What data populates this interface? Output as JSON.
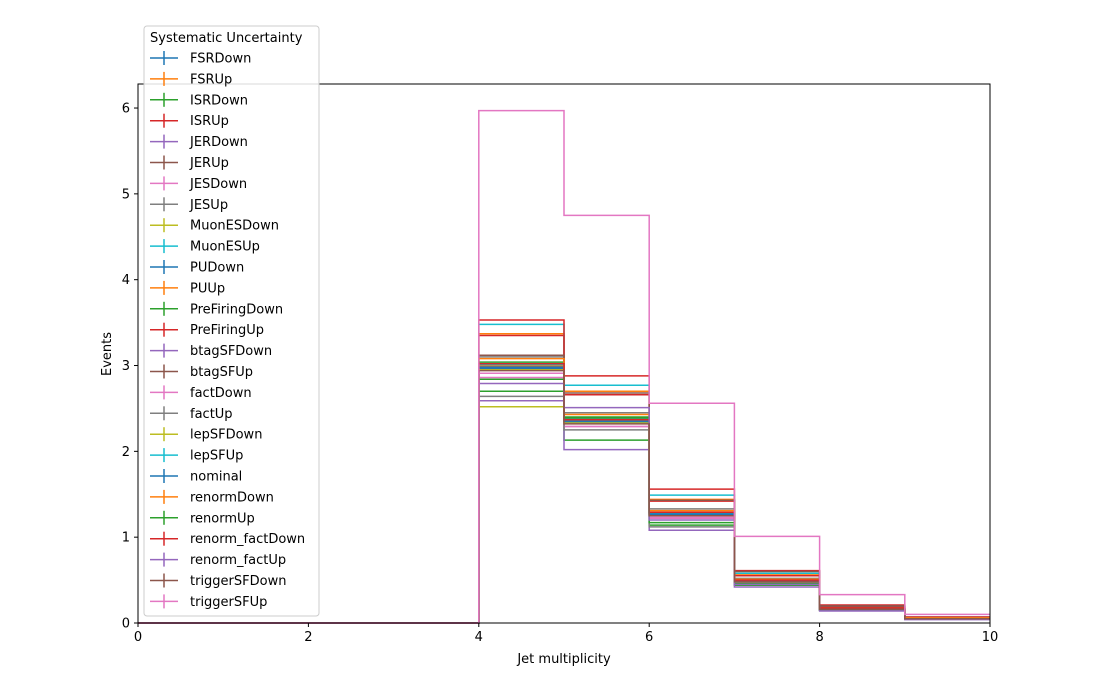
{
  "chart_data": {
    "type": "line",
    "drawstyle": "step",
    "title": "",
    "xlabel": "Jet multiplicity",
    "ylabel": "Events",
    "xlim": [
      0,
      10
    ],
    "ylim": [
      0,
      6.28
    ],
    "xticks": [
      0,
      2,
      4,
      6,
      8,
      10
    ],
    "yticks": [
      0,
      1,
      2,
      3,
      4,
      5,
      6
    ],
    "grid": false,
    "bin_edges": [
      0,
      1,
      2,
      3,
      4,
      5,
      6,
      7,
      8,
      9,
      10
    ],
    "legend": {
      "title": "Systematic Uncertainty",
      "placement": "upper-left-outside-top"
    },
    "series": [
      {
        "name": "FSRDown",
        "color": "#1f77b4",
        "values": [
          0,
          0,
          0,
          0,
          2.97,
          2.34,
          1.26,
          0.48,
          0.16,
          0.05
        ]
      },
      {
        "name": "FSRUp",
        "color": "#ff7f0e",
        "values": [
          0,
          0,
          0,
          0,
          3.37,
          2.7,
          1.44,
          0.56,
          0.19,
          0.06
        ]
      },
      {
        "name": "ISRDown",
        "color": "#2ca02c",
        "values": [
          0,
          0,
          0,
          0,
          2.7,
          2.13,
          1.14,
          0.44,
          0.15,
          0.05
        ]
      },
      {
        "name": "ISRUp",
        "color": "#d62728",
        "values": [
          0,
          0,
          0,
          0,
          3.35,
          2.66,
          1.42,
          0.55,
          0.19,
          0.06
        ]
      },
      {
        "name": "JERDown",
        "color": "#9467bd",
        "values": [
          0,
          0,
          0,
          0,
          2.98,
          2.35,
          1.27,
          0.49,
          0.16,
          0.05
        ]
      },
      {
        "name": "JERUp",
        "color": "#8c564b",
        "values": [
          0,
          0,
          0,
          0,
          2.99,
          2.36,
          1.27,
          0.49,
          0.16,
          0.05
        ]
      },
      {
        "name": "JESDown",
        "color": "#e377c2",
        "values": [
          0,
          0,
          0,
          0,
          2.86,
          2.29,
          1.22,
          0.46,
          0.15,
          0.05
        ]
      },
      {
        "name": "JESUp",
        "color": "#7f7f7f",
        "values": [
          0,
          0,
          0,
          0,
          3.1,
          2.45,
          1.33,
          0.52,
          0.17,
          0.06
        ]
      },
      {
        "name": "MuonESDown",
        "color": "#bcbd22",
        "values": [
          0,
          0,
          0,
          0,
          2.52,
          2.38,
          1.28,
          0.49,
          0.16,
          0.05
        ]
      },
      {
        "name": "MuonESUp",
        "color": "#17becf",
        "values": [
          0,
          0,
          0,
          0,
          3.48,
          2.77,
          1.49,
          0.58,
          0.2,
          0.07
        ]
      },
      {
        "name": "PUDown",
        "color": "#1f77b4",
        "values": [
          0,
          0,
          0,
          0,
          2.96,
          2.33,
          1.26,
          0.48,
          0.16,
          0.05
        ]
      },
      {
        "name": "PUUp",
        "color": "#ff7f0e",
        "values": [
          0,
          0,
          0,
          0,
          3.0,
          2.37,
          1.28,
          0.49,
          0.16,
          0.05
        ]
      },
      {
        "name": "PreFiringDown",
        "color": "#2ca02c",
        "values": [
          0,
          0,
          0,
          0,
          3.04,
          2.4,
          1.29,
          0.5,
          0.17,
          0.05
        ]
      },
      {
        "name": "PreFiringUp",
        "color": "#d62728",
        "values": [
          0,
          0,
          0,
          0,
          3.53,
          2.88,
          1.56,
          0.61,
          0.21,
          0.07
        ]
      },
      {
        "name": "btagSFDown",
        "color": "#9467bd",
        "values": [
          0,
          0,
          0,
          0,
          2.59,
          2.02,
          1.08,
          0.42,
          0.14,
          0.04
        ]
      },
      {
        "name": "btagSFUp",
        "color": "#8c564b",
        "values": [
          0,
          0,
          0,
          0,
          3.12,
          2.68,
          1.43,
          0.6,
          0.2,
          0.06
        ]
      },
      {
        "name": "factDown",
        "color": "#e377c2",
        "values": [
          0,
          0,
          0,
          0,
          2.91,
          2.29,
          1.23,
          0.47,
          0.16,
          0.05
        ]
      },
      {
        "name": "factUp",
        "color": "#7f7f7f",
        "values": [
          0,
          0,
          0,
          0,
          2.64,
          2.25,
          1.12,
          0.45,
          0.15,
          0.05
        ]
      },
      {
        "name": "lepSFDown",
        "color": "#bcbd22",
        "values": [
          0,
          0,
          0,
          0,
          2.95,
          2.33,
          1.25,
          0.48,
          0.16,
          0.05
        ]
      },
      {
        "name": "lepSFUp",
        "color": "#17becf",
        "values": [
          0,
          0,
          0,
          0,
          3.01,
          2.38,
          1.28,
          0.49,
          0.16,
          0.05
        ]
      },
      {
        "name": "nominal",
        "color": "#1f77b4",
        "values": [
          0,
          0,
          0,
          0,
          2.98,
          2.35,
          1.27,
          0.49,
          0.16,
          0.05
        ]
      },
      {
        "name": "renormDown",
        "color": "#ff7f0e",
        "values": [
          0,
          0,
          0,
          0,
          3.08,
          2.43,
          1.31,
          0.51,
          0.17,
          0.06
        ]
      },
      {
        "name": "renormUp",
        "color": "#2ca02c",
        "values": [
          0,
          0,
          0,
          0,
          2.84,
          2.39,
          1.17,
          0.46,
          0.15,
          0.05
        ]
      },
      {
        "name": "renorm_factDown",
        "color": "#d62728",
        "values": [
          0,
          0,
          0,
          0,
          3.02,
          2.37,
          1.29,
          0.5,
          0.17,
          0.05
        ]
      },
      {
        "name": "renorm_factUp",
        "color": "#9467bd",
        "values": [
          0,
          0,
          0,
          0,
          2.79,
          2.51,
          1.2,
          0.45,
          0.15,
          0.05
        ]
      },
      {
        "name": "triggerSFDown",
        "color": "#8c564b",
        "values": [
          0,
          0,
          0,
          0,
          2.94,
          2.32,
          1.25,
          0.48,
          0.16,
          0.05
        ]
      },
      {
        "name": "triggerSFUp",
        "color": "#e377c2",
        "values": [
          0,
          0,
          0,
          0,
          5.97,
          4.75,
          2.56,
          1.01,
          0.33,
          0.1
        ]
      }
    ]
  }
}
